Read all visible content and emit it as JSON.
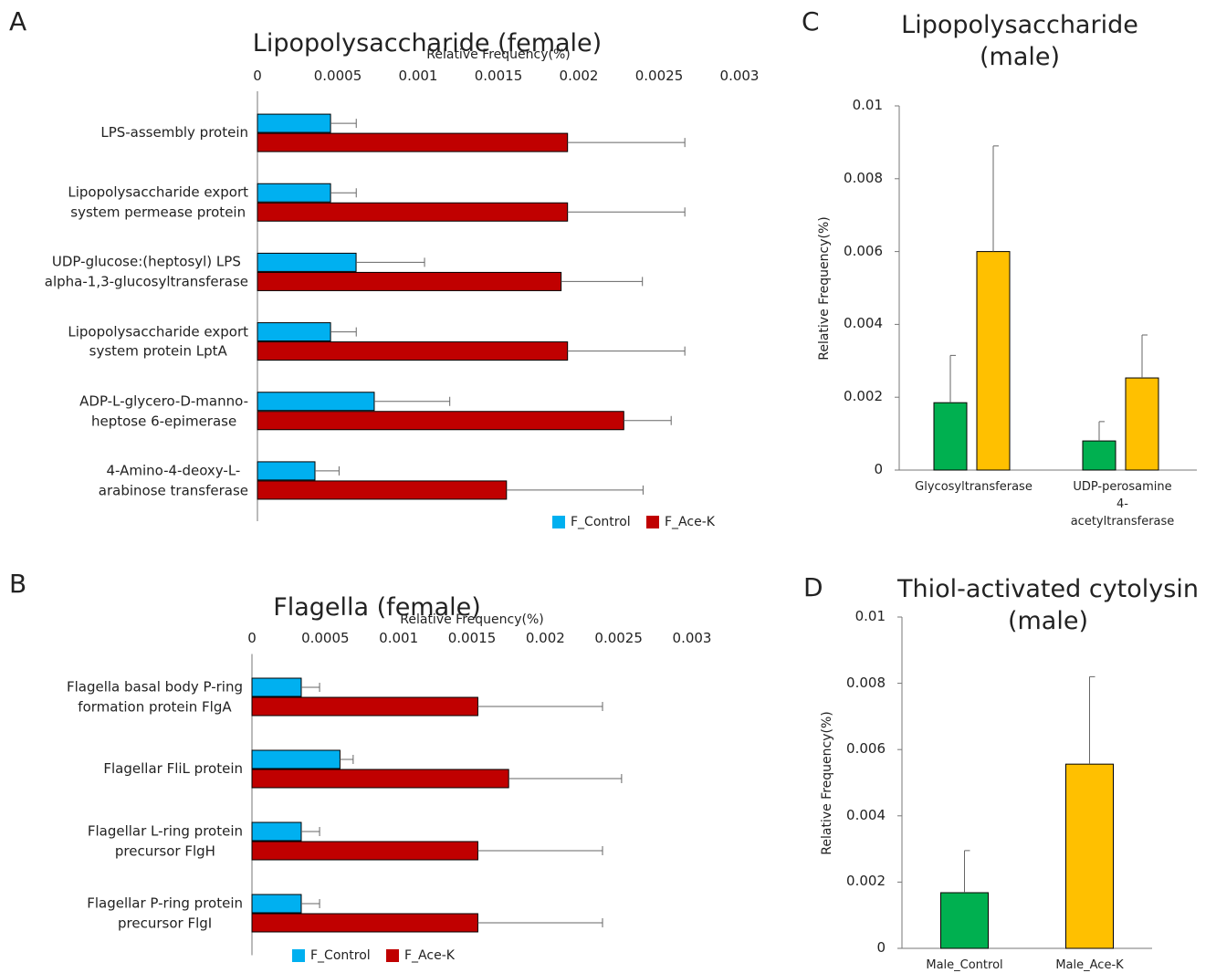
{
  "chart_data": [
    {
      "type": "hbar",
      "panel": "A",
      "title": "Lipopolysaccharide (female)",
      "x_label": "Relative Frequency(%)",
      "categories": [
        "LPS-assembly protein",
        "Lipopolysaccharide export\nsystem permease protein",
        "UDP-glucose:(heptosyl) LPS\nalpha-1,3-glucosyltransferase",
        "Lipopolysaccharide export\nsystem protein LptA",
        "ADP-L-glycero-D-manno-\nheptose 6-epimerase",
        "4-Amino-4-deoxy-L-\narabinose transferase"
      ],
      "series": [
        {
          "name": "F_Control",
          "color": "#00b0f0",
          "values": [
            0.000455,
            0.000455,
            0.000614,
            0.000455,
            0.000727,
            0.000358
          ],
          "errors": [
            0.00016,
            0.00016,
            0.000426,
            0.00016,
            0.00047,
            0.00015
          ]
        },
        {
          "name": "F_Ace-K",
          "color": "#c00000",
          "values": [
            0.00193,
            0.00193,
            0.00189,
            0.00193,
            0.00228,
            0.00155
          ],
          "errors": [
            0.00073,
            0.00073,
            0.000506,
            0.00073,
            0.000295,
            0.00085
          ]
        }
      ],
      "xlim": [
        0,
        0.003
      ],
      "xticks": [
        0,
        0.0005,
        0.001,
        0.0015,
        0.002,
        0.0025,
        0.003
      ]
    },
    {
      "type": "hbar",
      "panel": "B",
      "title": "Flagella (female)",
      "x_label": "Relative Frequency(%)",
      "categories": [
        "Flagella basal body P-ring\nformation protein FlgA",
        "Flagellar FliL protein",
        "Flagellar L-ring protein\nprecursor FlgH",
        "Flagellar P-ring protein\nprecursor FlgI"
      ],
      "series": [
        {
          "name": "F_Control",
          "color": "#00b0f0",
          "values": [
            0.000336,
            0.0006,
            0.000336,
            0.000336
          ],
          "errors": [
            0.000125,
            9e-05,
            0.000125,
            0.000125
          ]
        },
        {
          "name": "F_Ace-K",
          "color": "#c00000",
          "values": [
            0.00154,
            0.00175,
            0.00154,
            0.00154
          ],
          "errors": [
            0.00085,
            0.00077,
            0.00085,
            0.00085
          ]
        }
      ],
      "xlim": [
        0,
        0.003
      ],
      "xticks": [
        0,
        0.0005,
        0.001,
        0.0015,
        0.002,
        0.0025,
        0.003
      ]
    },
    {
      "type": "vbar",
      "panel": "C",
      "title": "Lipopolysaccharide\n(male)",
      "y_label": "Relative Frequency(%)",
      "categories": [
        "Glycosyltransferase",
        "UDP-perosamine 4-\nacetyltransferase"
      ],
      "series": [
        {
          "color": "#00b050",
          "values": [
            0.00185,
            0.0008
          ],
          "errors": [
            0.0013,
            0.00053
          ]
        },
        {
          "color": "#ffc000",
          "values": [
            0.006,
            0.00253
          ],
          "errors": [
            0.0029,
            0.00118
          ]
        }
      ],
      "ylim": [
        0,
        0.01
      ],
      "yticks": [
        0,
        0.002,
        0.004,
        0.006,
        0.008,
        0.01
      ]
    },
    {
      "type": "vbar",
      "panel": "D",
      "title": "Thiol-activated cytolysin\n(male)",
      "y_label": "Relative Frequency(%)",
      "categories": [
        "Male_Control",
        "Male_Ace-K"
      ],
      "series": [
        {
          "colors": [
            "#00b050",
            "#ffc000"
          ],
          "values": [
            0.00168,
            0.00556
          ],
          "errors": [
            0.00127,
            0.00264
          ]
        }
      ],
      "ylim": [
        0,
        0.01
      ],
      "yticks": [
        0,
        0.002,
        0.004,
        0.006,
        0.008,
        0.01
      ]
    }
  ]
}
